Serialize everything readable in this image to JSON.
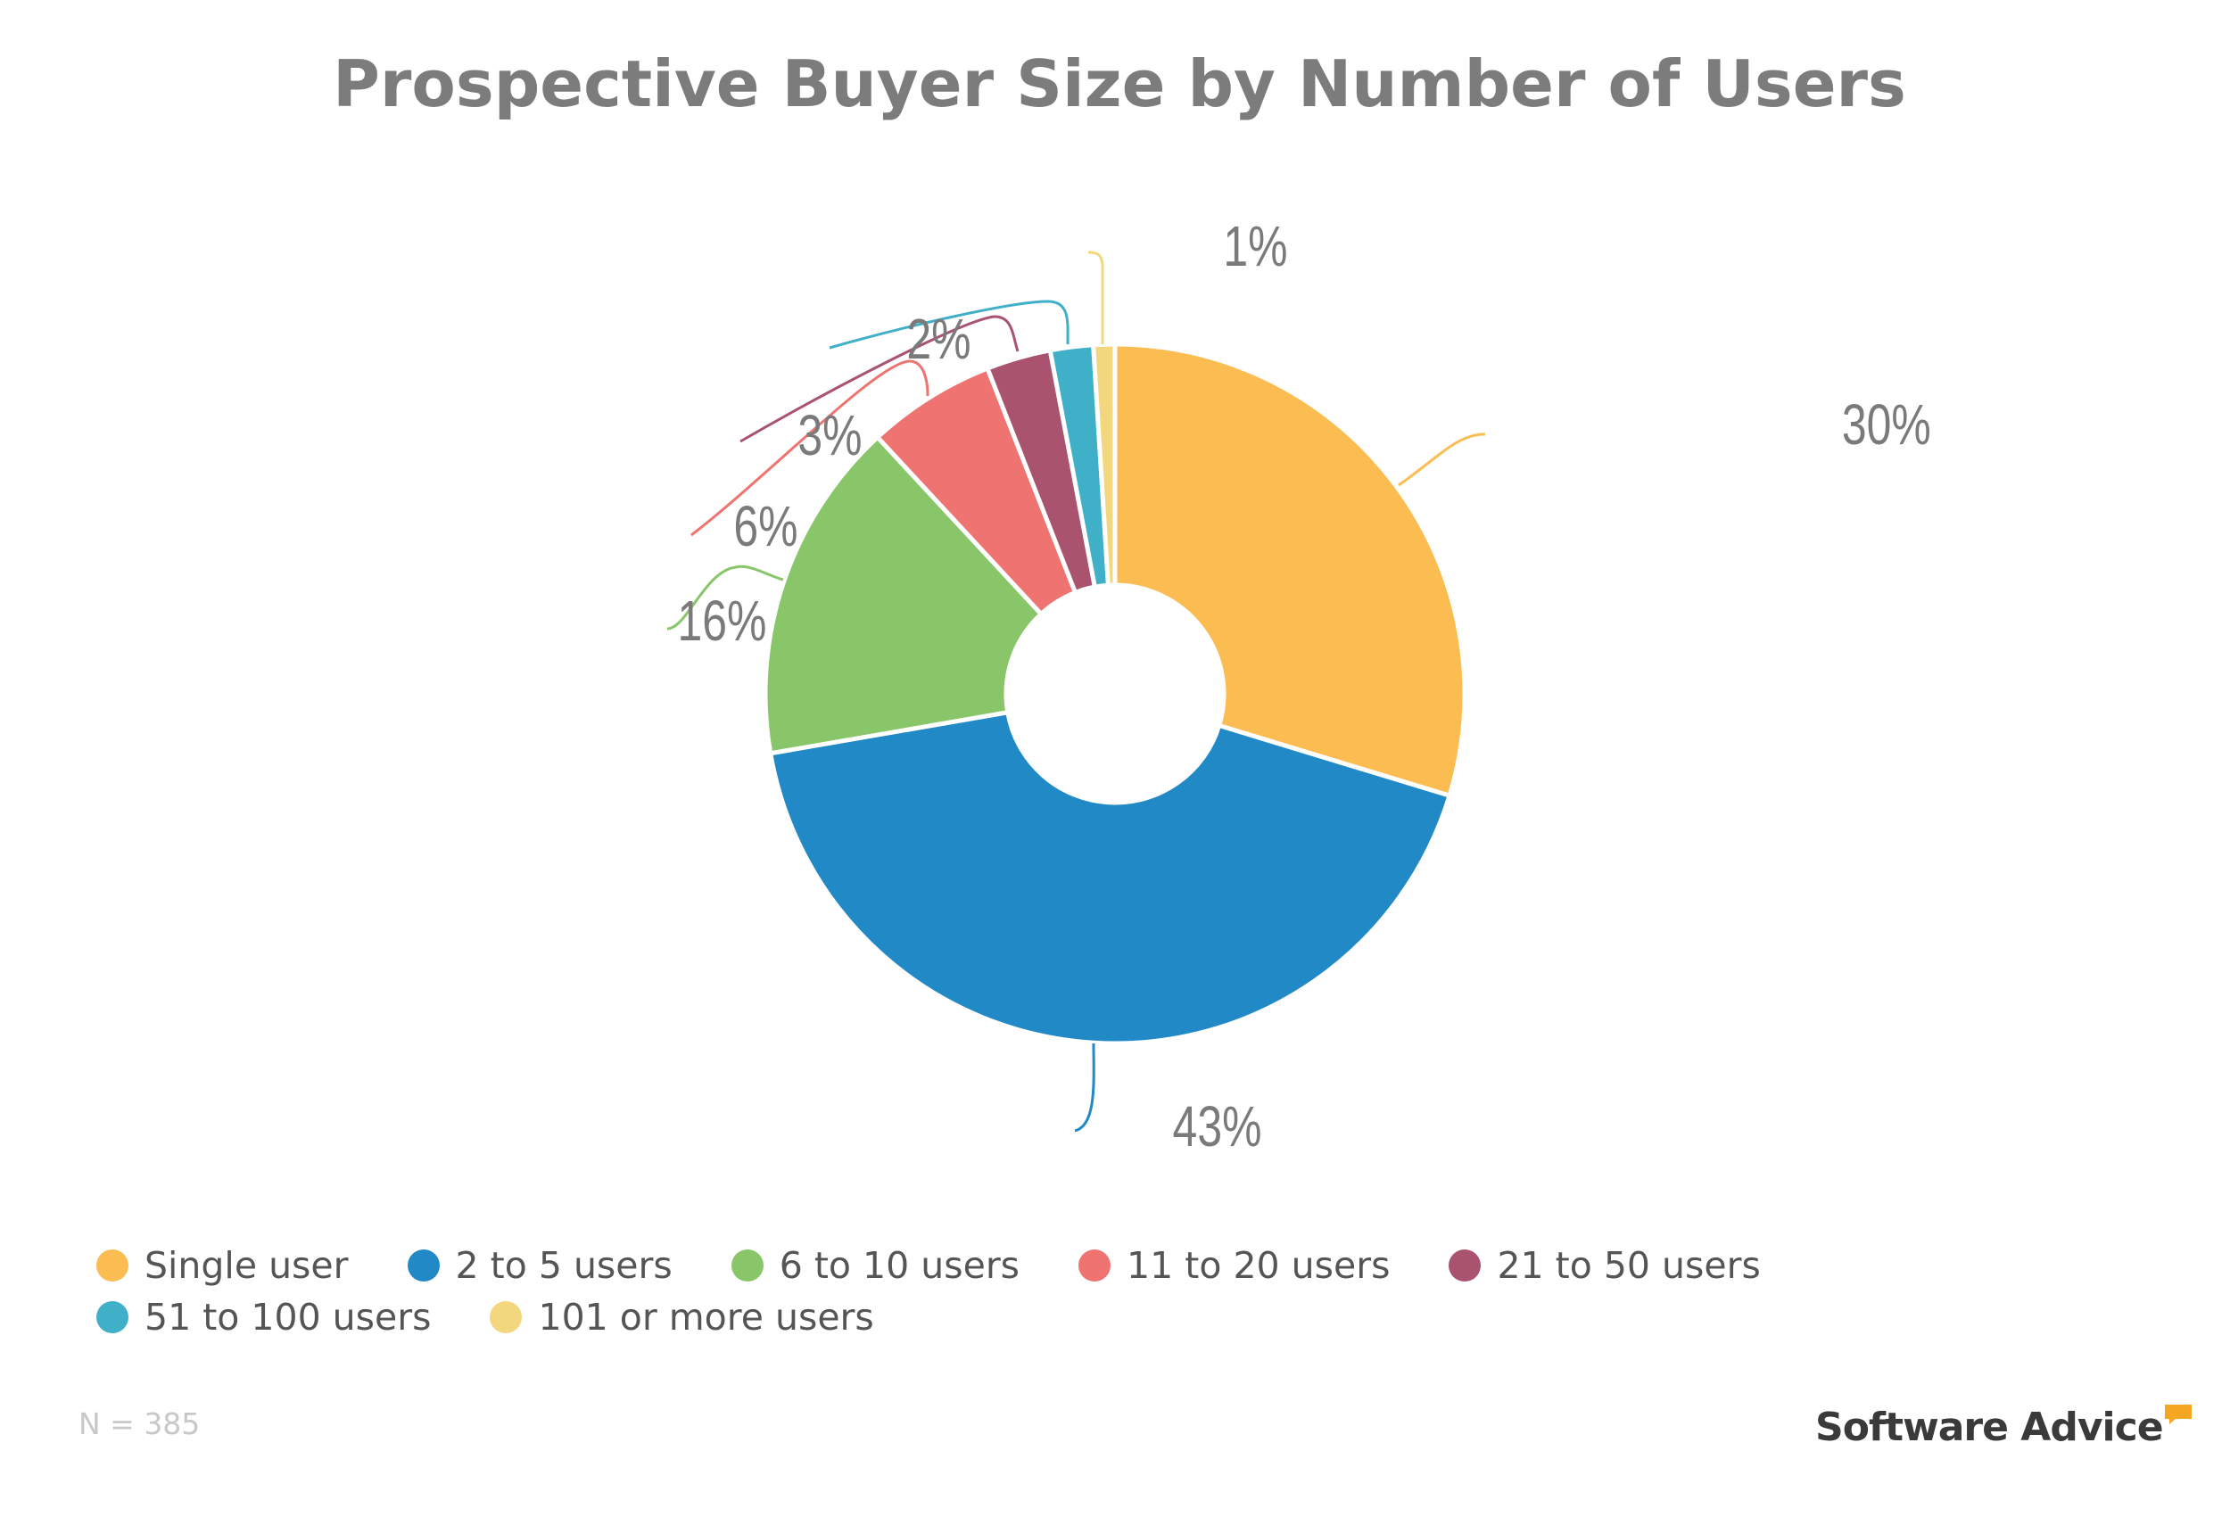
{
  "chart_data": {
    "type": "pie",
    "variant": "donut",
    "title": "Prospective Buyer Size by Number of Users",
    "categories": [
      "Single user",
      "2 to 5 users",
      "6 to 10 users",
      "11 to 20 users",
      "21 to 50 users",
      "51 to 100 users",
      "101 or more users"
    ],
    "values": [
      30,
      43,
      16,
      6,
      3,
      2,
      1
    ],
    "labels": [
      "30%",
      "43%",
      "16%",
      "6%",
      "3%",
      "2%",
      "1%"
    ],
    "colors": [
      "#fbbc52",
      "#2089c6",
      "#89c66a",
      "#ef7471",
      "#a9536e",
      "#40afc8",
      "#f3d77e"
    ],
    "legend_position": "bottom",
    "note": "N = 385"
  },
  "brand": {
    "name": "Software Advice",
    "accent": "#f5a623"
  }
}
